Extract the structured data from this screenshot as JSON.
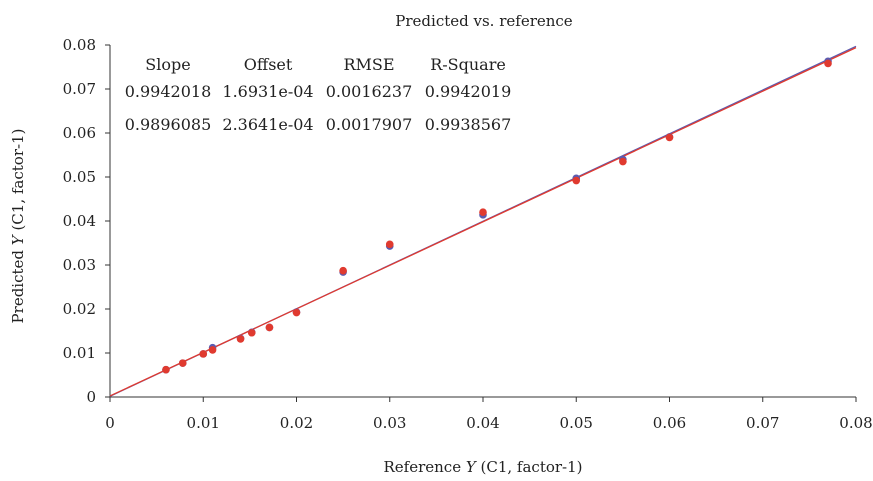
{
  "chart_data": {
    "type": "scatter",
    "title": "Predicted vs. reference",
    "xlabel": {
      "pre": "Reference ",
      "var": "Y",
      "post": " (C1, factor-1)"
    },
    "ylabel": {
      "pre": "Predicted ",
      "var": "Y",
      "post": " (C1, factor-1)"
    },
    "xlim": [
      0,
      0.08
    ],
    "ylim": [
      0,
      0.08
    ],
    "x_ticks": [
      "0",
      "0.01",
      "0.02",
      "0.03",
      "0.04",
      "0.05",
      "0.06",
      "0.07",
      "0.08"
    ],
    "y_ticks": [
      "0",
      "0.01",
      "0.02",
      "0.03",
      "0.04",
      "0.05",
      "0.06",
      "0.07",
      "0.08"
    ],
    "grid": false,
    "stats_headers": [
      "Slope",
      "Offset",
      "RMSE",
      "R-Square"
    ],
    "series": [
      {
        "color": "#5b5bb0",
        "stats": [
          "0.9942018",
          "1.6931e-04",
          "0.0016237",
          "0.9942019"
        ],
        "line": {
          "slope": 0.9942018,
          "offset": 0.00016931
        },
        "points": [
          [
            0.006,
            0.0062
          ],
          [
            0.0078,
            0.0077
          ],
          [
            0.01,
            0.0098
          ],
          [
            0.011,
            0.0112
          ],
          [
            0.014,
            0.0133
          ],
          [
            0.0152,
            0.0147
          ],
          [
            0.0171,
            0.0158
          ],
          [
            0.02,
            0.0193
          ],
          [
            0.025,
            0.0284
          ],
          [
            0.03,
            0.0343
          ],
          [
            0.04,
            0.0414
          ],
          [
            0.05,
            0.0497
          ],
          [
            0.055,
            0.054
          ],
          [
            0.06,
            0.0591
          ],
          [
            0.077,
            0.0763
          ]
        ]
      },
      {
        "color": "#e03a2f",
        "stats": [
          "0.9896085",
          "2.3641e-04",
          "0.0017907",
          "0.9938567"
        ],
        "line": {
          "slope": 0.9896085,
          "offset": 0.00023641
        },
        "points": [
          [
            0.006,
            0.0062
          ],
          [
            0.0078,
            0.0077
          ],
          [
            0.01,
            0.0098
          ],
          [
            0.011,
            0.0107
          ],
          [
            0.014,
            0.0132
          ],
          [
            0.0152,
            0.0146
          ],
          [
            0.0171,
            0.0158
          ],
          [
            0.02,
            0.0192
          ],
          [
            0.025,
            0.0287
          ],
          [
            0.03,
            0.0347
          ],
          [
            0.04,
            0.042
          ],
          [
            0.05,
            0.0492
          ],
          [
            0.055,
            0.0535
          ],
          [
            0.06,
            0.059
          ],
          [
            0.077,
            0.0758
          ]
        ]
      }
    ]
  }
}
